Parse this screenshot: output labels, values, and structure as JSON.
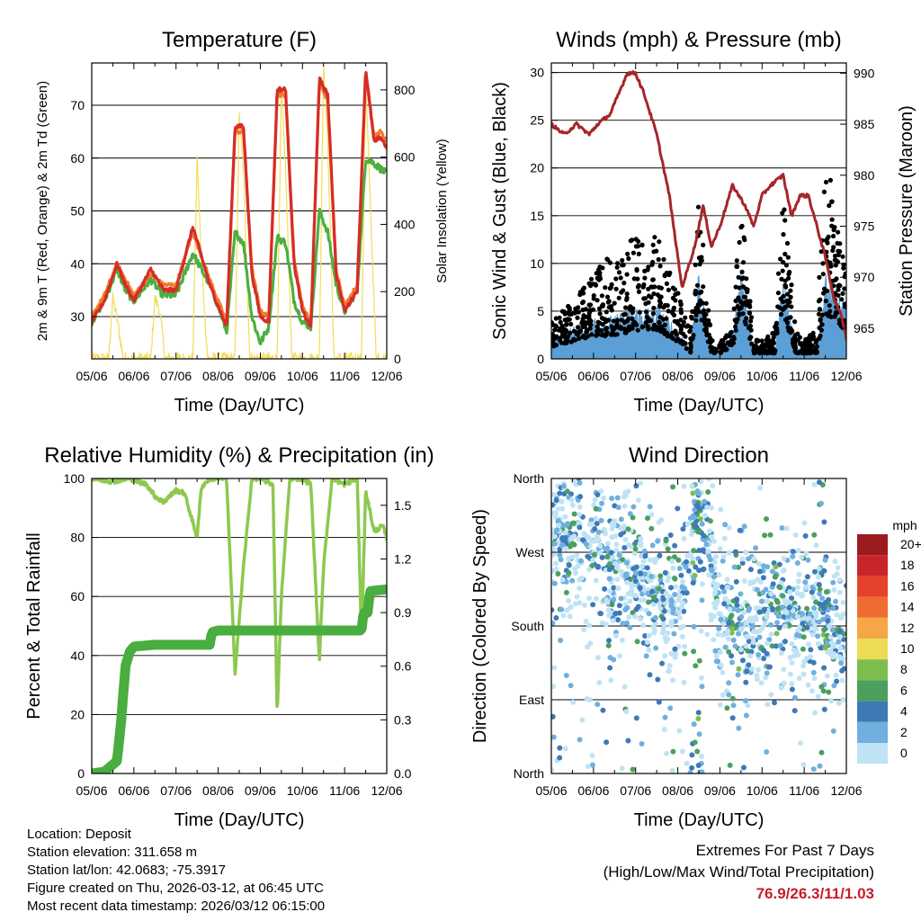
{
  "colors": {
    "temp2m": "#d62c27",
    "temp9m": "#f07c2e",
    "dewpoint": "#4caf3f",
    "solar": "#f2dd57",
    "wind": "#5b9fd6",
    "gust": "#000000",
    "pressure": "#a5262b",
    "rh": "#8dc84f",
    "precip": "#4aad3f"
  },
  "speed_legend": {
    "title": "mph",
    "labels": [
      "20+",
      "18",
      "16",
      "14",
      "12",
      "10",
      "8",
      "6",
      "4",
      "2",
      "0"
    ],
    "colors": [
      "#9b1b1e",
      "#c8252a",
      "#e5412c",
      "#f06b30",
      "#f6a646",
      "#eddc53",
      "#7cbd4d",
      "#4ba05d",
      "#3e79b8",
      "#6fb0de",
      "#bfe3f5"
    ]
  },
  "chart_data": [
    {
      "id": "temperature",
      "type": "line",
      "title": "Temperature (F)",
      "xlabel": "Time (Day/UTC)",
      "ylabel": "2m & 9m T (Red, Orange) & 2m Td (Green)",
      "ylabel_right": "Solar Insolation (Yellow)",
      "xlim": [
        0,
        7
      ],
      "ylim": [
        22,
        78
      ],
      "ylim_right": [
        0,
        880
      ],
      "x_ticks": [
        0,
        1,
        2,
        3,
        4,
        5,
        6,
        7
      ],
      "x_tick_labels": [
        "05/06",
        "06/06",
        "07/06",
        "08/06",
        "09/06",
        "10/06",
        "11/06",
        "12/06"
      ],
      "y_ticks": [
        30,
        40,
        50,
        60,
        70
      ],
      "y_tick_labels": [
        "30",
        "40",
        "50",
        "60",
        "70"
      ],
      "y_ticks_right": [
        0,
        200,
        400,
        600,
        800
      ],
      "y_tick_labels_right": [
        "0",
        "200",
        "400",
        "600",
        "800"
      ],
      "series": [
        {
          "name": "2m T",
          "x": [
            0,
            0.3,
            0.6,
            0.8,
            1.0,
            1.4,
            1.7,
            2.0,
            2.4,
            2.8,
            3.0,
            3.2,
            3.4,
            3.6,
            3.8,
            4.0,
            4.2,
            4.4,
            4.6,
            4.8,
            5.0,
            5.2,
            5.4,
            5.6,
            5.8,
            6.0,
            6.3,
            6.5,
            6.7,
            6.85,
            7.0
          ],
          "values": [
            29,
            33,
            40,
            36,
            33,
            39,
            35,
            35,
            47,
            36,
            32,
            28,
            66,
            66,
            38,
            30,
            29,
            73,
            73,
            40,
            31,
            28,
            75,
            72,
            38,
            31,
            35,
            77,
            63,
            64,
            62
          ]
        },
        {
          "name": "9m T",
          "x": [
            0,
            0.3,
            0.6,
            0.8,
            1.0,
            1.4,
            1.7,
            2.0,
            2.4,
            2.8,
            3.0,
            3.2,
            3.4,
            3.6,
            3.8,
            4.0,
            4.2,
            4.4,
            4.6,
            4.8,
            5.0,
            5.2,
            5.4,
            5.6,
            5.8,
            6.0,
            6.3,
            6.5,
            6.7,
            6.85,
            7.0
          ],
          "values": [
            30,
            34,
            40,
            37,
            34,
            38,
            36,
            36,
            46,
            37,
            33,
            29,
            65,
            65,
            39,
            31,
            30,
            72,
            72,
            41,
            32,
            29,
            74,
            71,
            39,
            32,
            36,
            76,
            64,
            65,
            63
          ]
        },
        {
          "name": "2m Td",
          "x": [
            0,
            0.3,
            0.6,
            0.8,
            1.0,
            1.4,
            1.7,
            2.0,
            2.4,
            2.8,
            3.0,
            3.2,
            3.4,
            3.6,
            3.8,
            4.0,
            4.2,
            4.4,
            4.6,
            4.8,
            5.0,
            5.2,
            5.4,
            5.6,
            5.8,
            6.0,
            6.3,
            6.5,
            6.7,
            6.85,
            7.0
          ],
          "values": [
            29,
            33,
            39,
            35,
            33,
            37,
            34,
            34,
            42,
            36,
            32,
            27,
            46,
            44,
            30,
            25,
            28,
            45,
            44,
            33,
            29,
            28,
            50,
            46,
            36,
            31,
            35,
            60,
            59,
            58,
            57
          ]
        },
        {
          "name": "Solar",
          "axis": "right",
          "x": [
            0,
            0.4,
            0.5,
            0.6,
            0.75,
            1.0,
            1.4,
            1.5,
            1.6,
            1.75,
            2.0,
            2.4,
            2.5,
            2.6,
            2.75,
            3.0,
            3.4,
            3.5,
            3.6,
            3.75,
            4.0,
            4.4,
            4.5,
            4.6,
            4.75,
            5.0,
            5.4,
            5.5,
            5.6,
            5.75,
            6.0,
            6.4,
            6.5,
            6.6,
            6.75,
            7.0
          ],
          "values": [
            0,
            0,
            180,
            120,
            0,
            0,
            0,
            180,
            150,
            0,
            0,
            0,
            600,
            300,
            0,
            0,
            0,
            720,
            560,
            0,
            0,
            0,
            800,
            560,
            0,
            0,
            0,
            880,
            640,
            0,
            0,
            0,
            820,
            500,
            0,
            0
          ]
        }
      ]
    },
    {
      "id": "winds",
      "type": "scatter",
      "title": "Winds (mph) & Pressure (mb)",
      "xlabel": "Time (Day/UTC)",
      "ylabel": "Sonic Wind & Gust (Blue, Black)",
      "ylabel_right": "Station Pressure (Maroon)",
      "xlim": [
        0,
        7
      ],
      "ylim": [
        0,
        31
      ],
      "ylim_right": [
        962,
        991
      ],
      "x_ticks": [
        0,
        1,
        2,
        3,
        4,
        5,
        6,
        7
      ],
      "x_tick_labels": [
        "05/06",
        "06/06",
        "07/06",
        "08/06",
        "09/06",
        "10/06",
        "11/06",
        "12/06"
      ],
      "y_ticks": [
        0,
        5,
        10,
        15,
        20,
        25,
        30
      ],
      "y_tick_labels": [
        "0",
        "5",
        "10",
        "15",
        "20",
        "25",
        "30"
      ],
      "y_ticks_right": [
        965,
        970,
        975,
        980,
        985,
        990
      ],
      "y_tick_labels_right": [
        "965",
        "970",
        "975",
        "980",
        "985",
        "990"
      ],
      "series": [
        {
          "name": "Wind envelope",
          "x": [
            0,
            0.5,
            1.0,
            1.5,
            2.0,
            2.5,
            3.0,
            3.3,
            3.5,
            3.8,
            4.0,
            4.3,
            4.5,
            4.8,
            5.0,
            5.3,
            5.5,
            5.8,
            6.0,
            6.3,
            6.5,
            6.8,
            7.0
          ],
          "values": [
            2,
            3,
            4,
            4,
            5,
            5,
            3,
            1,
            8,
            1,
            1,
            2,
            9,
            1,
            1,
            1,
            8,
            1,
            1,
            1,
            8,
            6,
            5
          ]
        },
        {
          "name": "Gust envelope",
          "x": [
            0,
            0.5,
            1.0,
            1.5,
            2.0,
            2.5,
            3.0,
            3.3,
            3.5,
            3.8,
            4.0,
            4.3,
            4.5,
            4.8,
            5.0,
            5.3,
            5.5,
            5.8,
            6.0,
            6.3,
            6.5,
            6.8,
            7.0
          ],
          "values": [
            4,
            6,
            9,
            12,
            13,
            13,
            7,
            3,
            17,
            2,
            2,
            3,
            18,
            2,
            2,
            3,
            17,
            3,
            2,
            3,
            23,
            14,
            10
          ]
        },
        {
          "name": "Pressure",
          "axis": "right",
          "x": [
            0,
            0.3,
            0.6,
            0.9,
            1.1,
            1.4,
            1.8,
            2.0,
            2.2,
            2.5,
            2.8,
            3.0,
            3.1,
            3.4,
            3.6,
            3.8,
            4.0,
            4.3,
            4.6,
            4.8,
            5.0,
            5.2,
            5.5,
            5.7,
            5.9,
            6.1,
            6.3,
            6.5,
            6.7,
            6.9,
            7.0
          ],
          "values": [
            985,
            984,
            985,
            984,
            985,
            986,
            990,
            990,
            988,
            984,
            978,
            972,
            969,
            973,
            977,
            973,
            975,
            979,
            977,
            975,
            978,
            979,
            980,
            976,
            978,
            978,
            975,
            972,
            968,
            966,
            964
          ]
        }
      ]
    },
    {
      "id": "humidity",
      "type": "line",
      "title": "Relative Humidity (%) & Precipitation (in)",
      "xlabel": "Time (Day/UTC)",
      "ylabel": "Percent & Total Rainfall",
      "xlim": [
        0,
        7
      ],
      "ylim": [
        0,
        100
      ],
      "ylim_right": [
        0,
        1.65
      ],
      "x_ticks": [
        0,
        1,
        2,
        3,
        4,
        5,
        6,
        7
      ],
      "x_tick_labels": [
        "05/06",
        "06/06",
        "07/06",
        "08/06",
        "09/06",
        "10/06",
        "11/06",
        "12/06"
      ],
      "y_ticks": [
        0,
        20,
        40,
        60,
        80,
        100
      ],
      "y_tick_labels": [
        "0",
        "20",
        "40",
        "60",
        "80",
        "100"
      ],
      "y_ticks_right": [
        0,
        0.3,
        0.6,
        0.9,
        1.2,
        1.5
      ],
      "y_tick_labels_right": [
        "0.0",
        "0.3",
        "0.6",
        "0.9",
        "1.2",
        "1.5"
      ],
      "series": [
        {
          "name": "RH",
          "x": [
            0,
            0.5,
            0.9,
            1.1,
            1.3,
            1.5,
            1.7,
            2.0,
            2.2,
            2.5,
            2.6,
            2.8,
            3.0,
            3.2,
            3.4,
            3.6,
            3.8,
            4.0,
            4.3,
            4.4,
            4.5,
            4.7,
            5.0,
            5.2,
            5.4,
            5.5,
            5.7,
            6.0,
            6.3,
            6.4,
            6.5,
            6.7,
            6.9,
            7.0
          ],
          "values": [
            100,
            99,
            100,
            99,
            98,
            94,
            92,
            96,
            95,
            80,
            97,
            100,
            100,
            100,
            34,
            70,
            100,
            100,
            98,
            20,
            60,
            100,
            100,
            98,
            38,
            70,
            100,
            98,
            100,
            46,
            96,
            82,
            84,
            80
          ]
        },
        {
          "name": "Total Precipitation",
          "axis": "right",
          "x": [
            0,
            0.3,
            0.6,
            0.7,
            0.8,
            0.9,
            1.0,
            1.5,
            2.0,
            2.8,
            2.85,
            3.0,
            4.0,
            5.0,
            6.0,
            6.4,
            6.45,
            6.55,
            6.6,
            7.0
          ],
          "values": [
            0,
            0.01,
            0.07,
            0.3,
            0.6,
            0.68,
            0.71,
            0.72,
            0.72,
            0.72,
            0.79,
            0.8,
            0.8,
            0.8,
            0.8,
            0.8,
            0.9,
            0.9,
            1.02,
            1.03
          ]
        }
      ]
    },
    {
      "id": "direction",
      "type": "scatter",
      "title": "Wind Direction",
      "xlabel": "Time (Day/UTC)",
      "ylabel": "Direction (Colored By Speed)",
      "xlim": [
        0,
        7
      ],
      "ylim": [
        0,
        360
      ],
      "x_ticks": [
        0,
        1,
        2,
        3,
        4,
        5,
        6,
        7
      ],
      "x_tick_labels": [
        "05/06",
        "06/06",
        "07/06",
        "08/06",
        "09/06",
        "10/06",
        "11/06",
        "12/06"
      ],
      "y_ticks": [
        0,
        90,
        180,
        270,
        360
      ],
      "y_tick_labels": [
        "North",
        "East",
        "South",
        "West",
        "North"
      ],
      "series": [
        {
          "name": "Direction band center",
          "x": [
            0,
            1,
            2,
            3,
            3.5,
            4,
            4.5,
            5,
            5.5,
            6,
            6.5,
            7
          ],
          "values": [
            290,
            280,
            230,
            200,
            340,
            190,
            180,
            200,
            200,
            190,
            180,
            170
          ]
        }
      ]
    }
  ],
  "station_info": {
    "location": "Location: Deposit",
    "elevation": "Station elevation: 311.658 m",
    "latlon": "Station lat/lon: 42.0683; -75.3917",
    "created": "Figure created on Thu, 2026-03-12, at 06:45 UTC",
    "recent": "Most recent data timestamp: 2026/03/12 06:15:00"
  },
  "extremes": {
    "title": "Extremes For Past 7 Days",
    "subtitle": "(High/Low/Max Wind/Total Precipitation)",
    "values": "76.9/26.3/11/1.03"
  }
}
